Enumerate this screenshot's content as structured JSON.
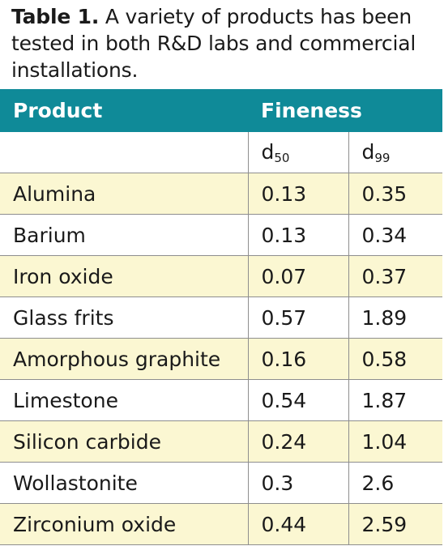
{
  "caption": {
    "label": "Table 1.",
    "text": " A variety of products has been tested in both R&D labs and commercial installations."
  },
  "table": {
    "headers": {
      "product": "Product",
      "fineness": "Fineness"
    },
    "subheaders": {
      "d50_base": "d",
      "d50_sub": "50",
      "d99_base": "d",
      "d99_sub": "99"
    },
    "rows": [
      {
        "product": "Alumina",
        "d50": "0.13",
        "d99": "0.35"
      },
      {
        "product": "Barium",
        "d50": "0.13",
        "d99": "0.34"
      },
      {
        "product": "Iron oxide",
        "d50": "0.07",
        "d99": "0.37"
      },
      {
        "product": "Glass frits",
        "d50": "0.57",
        "d99": "1.89"
      },
      {
        "product": "Amorphous graphite",
        "d50": "0.16",
        "d99": "0.58"
      },
      {
        "product": "Limestone",
        "d50": "0.54",
        "d99": "1.87"
      },
      {
        "product": "Silicon carbide",
        "d50": "0.24",
        "d99": "1.04"
      },
      {
        "product": "Wollastonite",
        "d50": "0.3",
        "d99": "2.6"
      },
      {
        "product": "Zirconium oxide",
        "d50": "0.44",
        "d99": "2.59"
      }
    ]
  },
  "colors": {
    "header_bg": "#0f8a98",
    "stripe_bg": "#fbf7d2",
    "rule": "#8e8e8e"
  }
}
